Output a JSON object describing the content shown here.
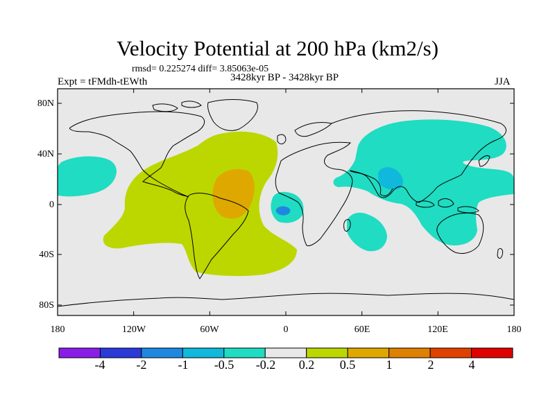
{
  "title": "Velocity Potential at 200 hPa (km2/s)",
  "stats": "rmsd= 0.225274 diff= 3.85063e-05",
  "period": "3428kyr BP - 3428kyr BP",
  "experiment": "Expt = tFMdh-tEWth",
  "season": "JJA",
  "map": {
    "lat_labels": [
      "80N",
      "40N",
      "0",
      "40S",
      "80S"
    ],
    "lon_labels": [
      "180",
      "120W",
      "60W",
      "0",
      "60E",
      "120E",
      "180"
    ],
    "colors": {
      "background": "#e8e8e8",
      "pos_0_2_0_5": "#bcd700",
      "pos_0_5_1": "#dfa800",
      "neg_0_5_0_2": "#1fdcc2",
      "neg_1_0_5": "#10b8dc",
      "neg_2_1": "#1e88e0",
      "coast": "#000000"
    }
  },
  "colorbar": {
    "labels": [
      "-4",
      "-2",
      "-1",
      "-0.5",
      "-0.2",
      "0.2",
      "0.5",
      "1",
      "2",
      "4"
    ],
    "colors": [
      "#8a1ee8",
      "#2a3ad8",
      "#1e88e0",
      "#10b8dc",
      "#1fdcc2",
      "#e8e8e8",
      "#bcd700",
      "#dfa800",
      "#de8000",
      "#e04000",
      "#e00000"
    ]
  }
}
